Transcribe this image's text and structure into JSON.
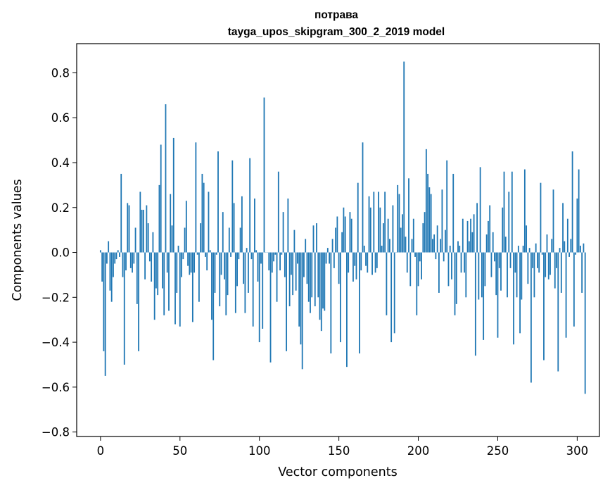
{
  "chart_data": {
    "type": "bar",
    "title_line1": "потрава",
    "title_line2": "tayga_upos_skipgram_300_2_2019 model",
    "xlabel": "Vector components",
    "ylabel": "Components values",
    "xlim": [
      -15,
      314
    ],
    "ylim": [
      -0.82,
      0.93
    ],
    "xticks": [
      0,
      50,
      100,
      150,
      200,
      250,
      300
    ],
    "yticks": [
      -0.8,
      -0.6,
      -0.4,
      -0.2,
      0.0,
      0.2,
      0.4,
      0.6,
      0.8
    ],
    "ytick_labels": [
      "−0.8",
      "−0.6",
      "−0.4",
      "−0.2",
      "0.0",
      "0.2",
      "0.4",
      "0.6",
      "0.8"
    ],
    "bar_color": "#1f77b4",
    "values": [
      0.01,
      -0.13,
      -0.44,
      -0.55,
      -0.05,
      0.05,
      -0.17,
      -0.22,
      -0.11,
      -0.05,
      -0.03,
      0.01,
      -0.02,
      0.35,
      -0.11,
      -0.5,
      -0.08,
      0.22,
      0.21,
      -0.07,
      -0.09,
      -0.05,
      0.11,
      -0.23,
      -0.44,
      0.27,
      0.19,
      0.19,
      -0.12,
      0.21,
      0.13,
      -0.04,
      -0.13,
      0.09,
      -0.3,
      -0.16,
      -0.19,
      0.3,
      0.48,
      -0.16,
      -0.28,
      0.66,
      -0.09,
      -0.26,
      0.26,
      0.12,
      0.51,
      -0.32,
      -0.18,
      0.03,
      -0.33,
      -0.11,
      -0.03,
      0.11,
      0.23,
      -0.06,
      -0.1,
      -0.09,
      -0.31,
      -0.09,
      0.49,
      -0.01,
      -0.22,
      0.13,
      0.35,
      0.31,
      -0.02,
      -0.08,
      0.27,
      0.01,
      -0.3,
      -0.48,
      -0.18,
      -0.01,
      0.45,
      -0.24,
      -0.1,
      0.18,
      -0.12,
      -0.28,
      -0.19,
      0.11,
      -0.02,
      0.41,
      0.22,
      -0.27,
      -0.15,
      -0.03,
      0.11,
      0.25,
      -0.14,
      -0.27,
      0.02,
      -0.18,
      0.42,
      -0.03,
      -0.33,
      0.24,
      0.01,
      -0.13,
      -0.4,
      -0.05,
      -0.34,
      0.69,
      0.0,
      0.0,
      -0.08,
      -0.49,
      -0.09,
      -0.04,
      -0.01,
      -0.22,
      0.36,
      -0.08,
      -0.01,
      0.18,
      -0.11,
      -0.44,
      0.24,
      -0.24,
      -0.1,
      -0.19,
      0.1,
      -0.17,
      -0.05,
      -0.33,
      -0.41,
      -0.52,
      -0.11,
      0.06,
      -0.14,
      -0.22,
      -0.27,
      -0.2,
      0.12,
      -0.24,
      0.13,
      -0.2,
      -0.3,
      -0.35,
      -0.25,
      -0.26,
      -0.05,
      0.02,
      -0.05,
      -0.45,
      0.06,
      -0.07,
      0.11,
      0.16,
      -0.14,
      -0.4,
      0.09,
      0.2,
      0.16,
      -0.51,
      -0.09,
      0.18,
      0.15,
      -0.13,
      -0.06,
      -0.12,
      0.31,
      -0.45,
      -0.08,
      0.49,
      0.03,
      -0.06,
      -0.09,
      0.25,
      0.2,
      -0.1,
      0.27,
      -0.09,
      -0.07,
      0.27,
      0.2,
      0.03,
      0.13,
      0.27,
      -0.28,
      0.15,
      0.06,
      -0.4,
      0.21,
      -0.36,
      0.0,
      0.3,
      0.26,
      0.11,
      0.17,
      0.85,
      0.07,
      -0.09,
      0.33,
      -0.15,
      0.06,
      0.15,
      -0.02,
      -0.28,
      -0.15,
      -0.04,
      -0.12,
      0.13,
      0.18,
      0.46,
      0.35,
      0.29,
      0.26,
      0.06,
      0.08,
      -0.03,
      0.12,
      -0.18,
      0.06,
      0.28,
      -0.04,
      0.1,
      0.41,
      -0.15,
      0.03,
      -0.12,
      0.35,
      -0.28,
      -0.23,
      0.05,
      0.03,
      -0.09,
      0.15,
      -0.09,
      -0.2,
      0.14,
      0.05,
      0.15,
      0.09,
      0.17,
      -0.46,
      0.22,
      -0.21,
      0.38,
      -0.2,
      -0.39,
      -0.15,
      0.08,
      0.14,
      0.21,
      -0.11,
      0.09,
      -0.04,
      -0.19,
      -0.38,
      -0.07,
      -0.17,
      0.2,
      0.36,
      0.07,
      -0.2,
      0.27,
      -0.07,
      0.36,
      -0.41,
      -0.09,
      -0.2,
      0.03,
      -0.36,
      -0.21,
      0.03,
      0.37,
      0.12,
      -0.14,
      0.02,
      -0.58,
      -0.07,
      -0.2,
      0.04,
      -0.07,
      -0.09,
      0.31,
      -0.01,
      -0.48,
      -0.11,
      0.08,
      -0.12,
      -0.1,
      0.06,
      0.28,
      -0.16,
      -0.07,
      -0.53,
      0.02,
      -0.18,
      0.22,
      0.05,
      -0.38,
      0.15,
      -0.02,
      0.06,
      0.45,
      -0.33,
      -0.01,
      0.24,
      0.37,
      0.03,
      -0.18,
      0.04,
      -0.63
    ]
  }
}
